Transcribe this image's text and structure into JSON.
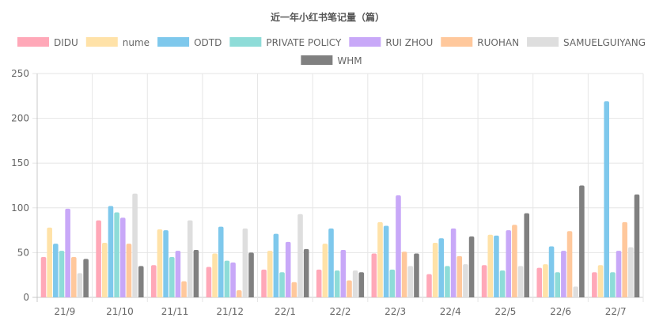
{
  "chart_data": {
    "type": "bar",
    "title": "近一年小红书笔记量（篇）",
    "categories": [
      "21/9",
      "21/10",
      "21/11",
      "21/12",
      "22/1",
      "22/2",
      "22/3",
      "22/4",
      "22/5",
      "22/6",
      "22/7"
    ],
    "ylim": [
      0,
      250
    ],
    "yticks": [
      0,
      50,
      100,
      150,
      200,
      250
    ],
    "grid": true,
    "legend_position": "top",
    "series": [
      {
        "name": "DIDU",
        "color": "#ffa8b8",
        "values": [
          45,
          86,
          36,
          34,
          31,
          31,
          49,
          26,
          36,
          33,
          28
        ]
      },
      {
        "name": "nume",
        "color": "#ffe2a8",
        "values": [
          78,
          61,
          76,
          49,
          52,
          60,
          84,
          61,
          70,
          37,
          36
        ]
      },
      {
        "name": "ODTD",
        "color": "#7ec8ec",
        "values": [
          60,
          102,
          75,
          79,
          71,
          77,
          80,
          66,
          69,
          57,
          219
        ]
      },
      {
        "name": "PRIVATE POLICY",
        "color": "#8edcd8",
        "values": [
          52,
          95,
          45,
          41,
          28,
          30,
          31,
          35,
          30,
          28,
          28
        ]
      },
      {
        "name": "RUI ZHOU",
        "color": "#c8a8f8",
        "values": [
          99,
          89,
          52,
          39,
          62,
          53,
          114,
          77,
          75,
          52,
          52
        ]
      },
      {
        "name": "RUOHAN",
        "color": "#ffc89c",
        "values": [
          45,
          60,
          18,
          8,
          17,
          19,
          51,
          46,
          81,
          74,
          84
        ]
      },
      {
        "name": "SAMUELGUIYANG",
        "color": "#dedede",
        "values": [
          27,
          116,
          86,
          77,
          93,
          30,
          35,
          37,
          35,
          12,
          56
        ]
      },
      {
        "name": "WHM",
        "color": "#808080",
        "values": [
          43,
          35,
          53,
          50,
          54,
          28,
          49,
          68,
          94,
          125,
          115
        ]
      }
    ]
  }
}
